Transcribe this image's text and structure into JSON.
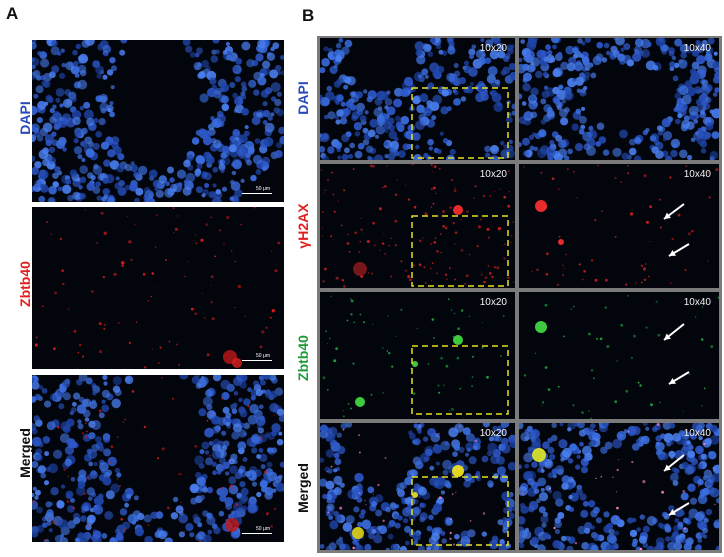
{
  "figure": {
    "panel_a": {
      "letter": "A",
      "rows": [
        {
          "label": "DAPI",
          "color": "#2a4bbd",
          "scale_label": "50 μm"
        },
        {
          "label": "Zbtb40",
          "color": "#e02020",
          "scale_label": "50 μm"
        },
        {
          "label": "Merged",
          "color": "#111111",
          "scale_label": "50 μm"
        }
      ]
    },
    "panel_b": {
      "letter": "B",
      "rows": [
        {
          "label": "DAPI",
          "color": "#2a4bbd",
          "left_mag": "10x20",
          "right_mag": "10x40"
        },
        {
          "label": "γH2AX",
          "color": "#e02020",
          "left_mag": "10x20",
          "right_mag": "10x40"
        },
        {
          "label": "Zbtb40",
          "color": "#1f9a3a",
          "left_mag": "10x20",
          "right_mag": "10x40"
        },
        {
          "label": "Merged",
          "color": "#111111",
          "left_mag": "10x20",
          "right_mag": "10x40"
        }
      ]
    }
  }
}
